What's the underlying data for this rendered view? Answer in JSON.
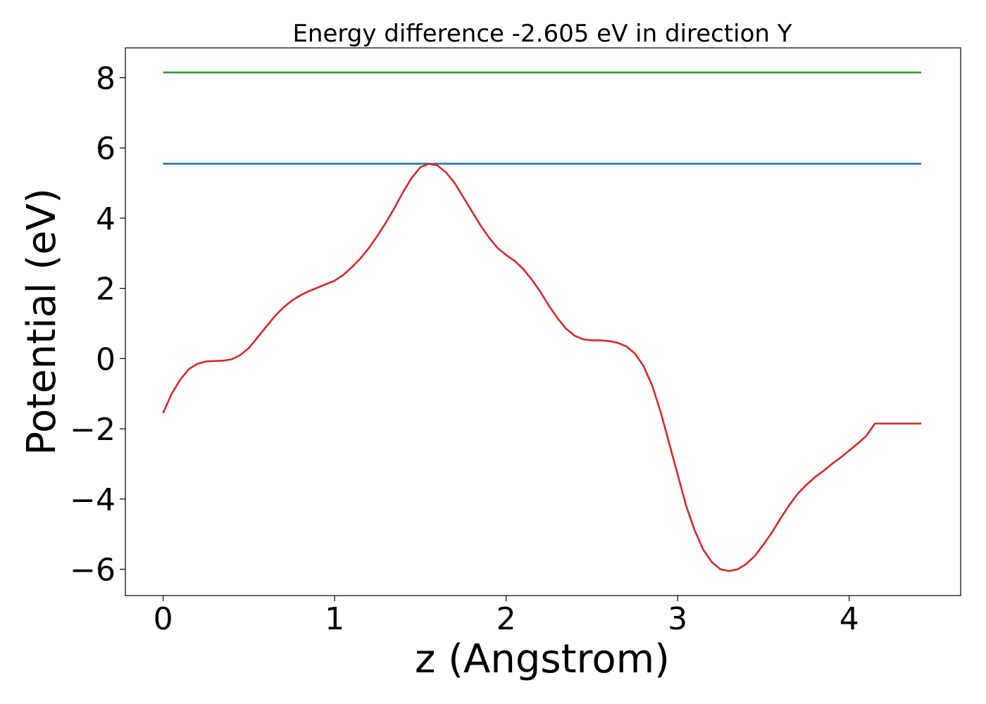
{
  "chart_data": {
    "type": "line",
    "title": "Energy difference -2.605 eV in direction Y",
    "xlabel": "z (Angstrom)",
    "ylabel": "Potential (eV)",
    "xlim": [
      -0.22,
      4.65
    ],
    "ylim": [
      -6.75,
      8.85
    ],
    "xticks": [
      0,
      1,
      2,
      3,
      4
    ],
    "xtick_labels": [
      "0",
      "1",
      "2",
      "3",
      "4"
    ],
    "yticks": [
      -6,
      -4,
      -2,
      0,
      2,
      4,
      6,
      8
    ],
    "ytick_labels": [
      "−6",
      "−4",
      "−2",
      "0",
      "2",
      "4",
      "6",
      "8"
    ],
    "grid": false,
    "series": [
      {
        "color": "#2ca02c",
        "x": [
          0,
          4.42
        ],
        "y": [
          8.15,
          8.15
        ]
      },
      {
        "color": "#1f77b4",
        "x": [
          0,
          4.42
        ],
        "y": [
          5.55,
          5.55
        ]
      },
      {
        "color": "#d62728",
        "x": [
          0,
          0.05,
          0.1,
          0.15,
          0.2,
          0.25,
          0.3,
          0.35,
          0.4,
          0.45,
          0.5,
          0.55,
          0.6,
          0.65,
          0.7,
          0.75,
          0.8,
          0.85,
          0.9,
          0.95,
          1.0,
          1.05,
          1.1,
          1.15,
          1.2,
          1.25,
          1.3,
          1.35,
          1.4,
          1.45,
          1.5,
          1.55,
          1.6,
          1.65,
          1.7,
          1.75,
          1.8,
          1.85,
          1.9,
          1.95,
          2.0,
          2.05,
          2.1,
          2.15,
          2.2,
          2.25,
          2.3,
          2.35,
          2.4,
          2.45,
          2.5,
          2.55,
          2.6,
          2.65,
          2.7,
          2.75,
          2.8,
          2.85,
          2.9,
          2.95,
          3.0,
          3.05,
          3.1,
          3.15,
          3.2,
          3.25,
          3.3,
          3.35,
          3.4,
          3.45,
          3.5,
          3.55,
          3.6,
          3.65,
          3.7,
          3.75,
          3.8,
          3.85,
          3.9,
          3.95,
          4.0,
          4.05,
          4.1,
          4.15,
          4.2,
          4.25,
          4.3,
          4.35,
          4.42
        ],
        "y": [
          -1.55,
          -1.0,
          -0.6,
          -0.3,
          -0.15,
          -0.08,
          -0.07,
          -0.06,
          -0.02,
          0.1,
          0.3,
          0.6,
          0.9,
          1.2,
          1.45,
          1.65,
          1.8,
          1.92,
          2.02,
          2.12,
          2.22,
          2.38,
          2.6,
          2.85,
          3.15,
          3.5,
          3.88,
          4.3,
          4.75,
          5.15,
          5.45,
          5.55,
          5.5,
          5.3,
          5.0,
          4.6,
          4.2,
          3.8,
          3.45,
          3.15,
          2.95,
          2.78,
          2.55,
          2.25,
          1.9,
          1.5,
          1.15,
          0.85,
          0.65,
          0.55,
          0.52,
          0.52,
          0.5,
          0.45,
          0.35,
          0.15,
          -0.2,
          -0.75,
          -1.5,
          -2.4,
          -3.3,
          -4.2,
          -4.9,
          -5.45,
          -5.8,
          -6.0,
          -6.05,
          -6.0,
          -5.85,
          -5.62,
          -5.3,
          -4.95,
          -4.55,
          -4.18,
          -3.85,
          -3.6,
          -3.38,
          -3.2,
          -3.0,
          -2.82,
          -2.62,
          -2.42,
          -2.2,
          -1.85,
          -1.85,
          -1.85,
          -1.85,
          -1.85,
          -1.85
        ]
      }
    ]
  }
}
